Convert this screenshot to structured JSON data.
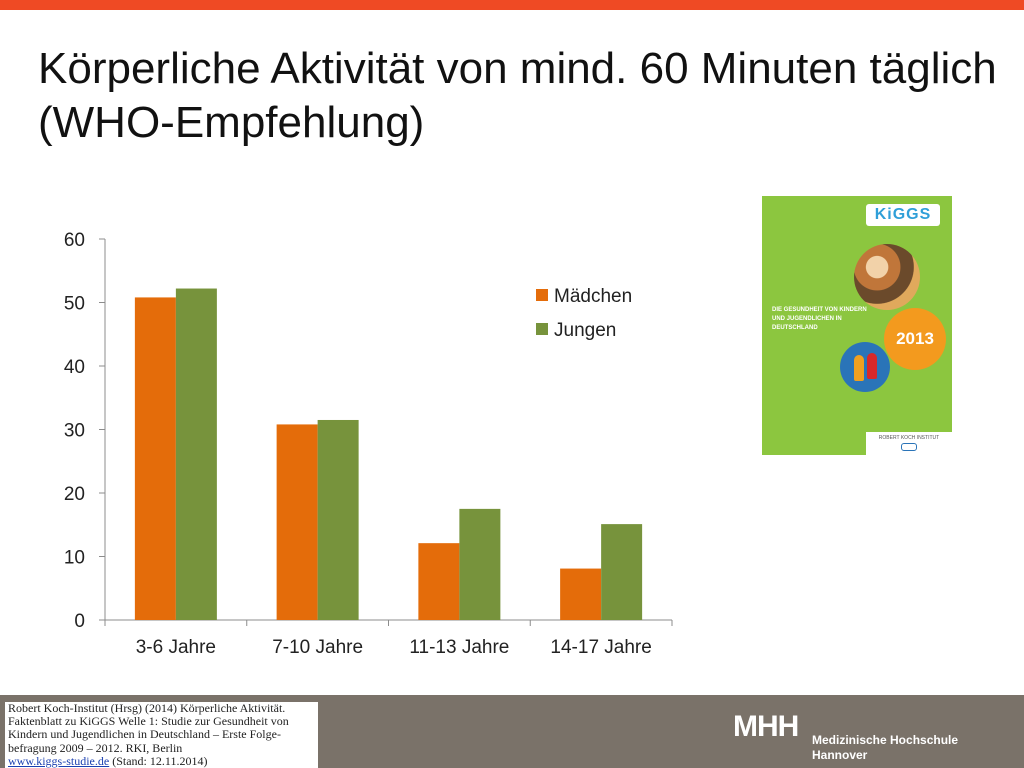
{
  "slide": {
    "title": "Körperliche Aktivität von mind. 60 Minuten täglich (WHO-Empfehlung)"
  },
  "chart_data": {
    "type": "bar",
    "categories": [
      "3-6 Jahre",
      "7-10 Jahre",
      "11-13 Jahre",
      "14-17 Jahre"
    ],
    "series": [
      {
        "name": "Mädchen",
        "values": [
          50.8,
          30.8,
          12.1,
          8.1
        ],
        "color": "#e46c0a"
      },
      {
        "name": "Jungen",
        "values": [
          52.2,
          31.5,
          17.5,
          15.1
        ],
        "color": "#77933c"
      }
    ],
    "title": "",
    "xlabel": "",
    "ylabel": "",
    "ylim": [
      0,
      60
    ],
    "yticks": [
      0,
      10,
      20,
      30,
      40,
      50,
      60
    ],
    "legend": "right",
    "grid": false
  },
  "cover": {
    "logo": "KiGGS",
    "subtitle": "DIE GESUNDHEIT VON KINDERN UND JUGENDLICHEN IN DEUTSCHLAND",
    "year": "2013",
    "publisher": "ROBERT KOCH INSTITUT",
    "colors": {
      "background": "#8cc63f",
      "badge": "#f39a1e",
      "logo_text": "#2f9fd8"
    }
  },
  "footer": {
    "citation_lines": [
      "Robert Koch-Institut (Hrsg) (2014) Körperliche Aktivität.",
      "Faktenblatt zu KiGGS Welle 1: Studie zur Gesundheit von",
      "Kindern und Jugendlichen in Deutschland – Erste Folge-",
      "befragung 2009 – 2012. RKI, Berlin"
    ],
    "citation_link": "www.kiggs-studie.de",
    "citation_tail": " (Stand: 12.11.2014)",
    "logo_text": "MHH",
    "institution_line1": "Medizinische Hochschule",
    "institution_line2": "Hannover",
    "colors": {
      "bar": "#7a7269",
      "top_bar": "#ef4a24"
    }
  }
}
